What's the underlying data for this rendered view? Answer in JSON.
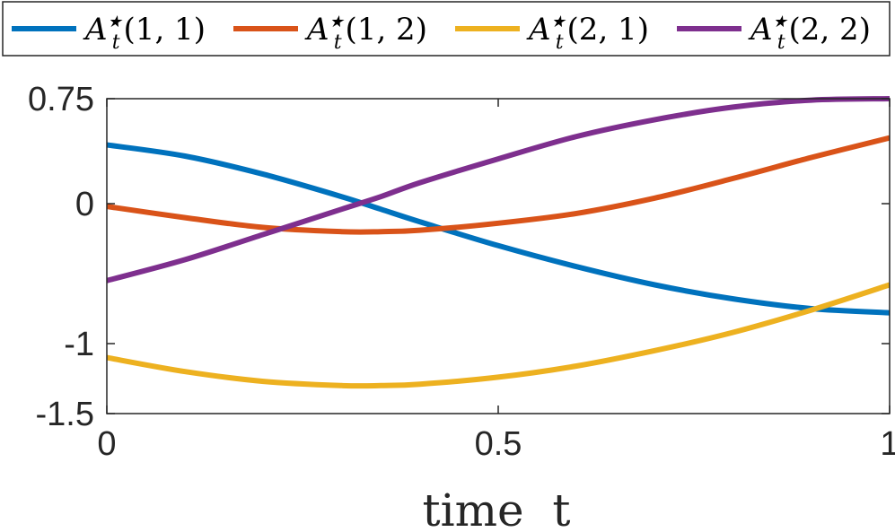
{
  "chart_data": {
    "type": "line",
    "title": "",
    "xlabel": "time  t",
    "ylabel": "",
    "xlim": [
      0,
      1
    ],
    "ylim": [
      -1.5,
      0.75
    ],
    "x_ticks": [
      {
        "value": 0,
        "label": "0"
      },
      {
        "value": 0.5,
        "label": "0.5"
      },
      {
        "value": 1,
        "label": "1"
      }
    ],
    "y_ticks": [
      {
        "value": 0.75,
        "label": "0.75"
      },
      {
        "value": 0,
        "label": "0"
      },
      {
        "value": -1,
        "label": "-1"
      },
      {
        "value": -1.5,
        "label": "-1.5"
      }
    ],
    "legend_position": "top",
    "x": [
      0,
      0.1,
      0.2,
      0.3,
      0.35,
      0.4,
      0.5,
      0.6,
      0.7,
      0.8,
      0.9,
      1.0
    ],
    "series": [
      {
        "name": "A_t*(1,1)",
        "legend": {
          "base": "A",
          "sup": "★",
          "sub": "t",
          "args": "(1, 1)"
        },
        "color": "#0072BD",
        "values": [
          0.42,
          0.34,
          0.21,
          0.05,
          -0.04,
          -0.13,
          -0.3,
          -0.45,
          -0.58,
          -0.68,
          -0.75,
          -0.78
        ]
      },
      {
        "name": "A_t*(1,2)",
        "legend": {
          "base": "A",
          "sup": "★",
          "sub": "t",
          "args": "(1, 2)"
        },
        "color": "#D95319",
        "values": [
          -0.02,
          -0.1,
          -0.17,
          -0.2,
          -0.2,
          -0.19,
          -0.14,
          -0.07,
          0.04,
          0.18,
          0.33,
          0.47
        ]
      },
      {
        "name": "A_t*(2,1)",
        "legend": {
          "base": "A",
          "sup": "★",
          "sub": "t",
          "args": "(2, 1)"
        },
        "color": "#EDB120",
        "values": [
          -1.1,
          -1.2,
          -1.27,
          -1.3,
          -1.3,
          -1.29,
          -1.24,
          -1.16,
          -1.05,
          -0.92,
          -0.76,
          -0.58
        ]
      },
      {
        "name": "A_t*(2,2)",
        "legend": {
          "base": "A",
          "sup": "★",
          "sub": "t",
          "args": "(2, 2)"
        },
        "color": "#7E2F8E",
        "values": [
          -0.55,
          -0.4,
          -0.22,
          -0.04,
          0.05,
          0.15,
          0.32,
          0.48,
          0.6,
          0.69,
          0.74,
          0.75
        ]
      }
    ]
  }
}
